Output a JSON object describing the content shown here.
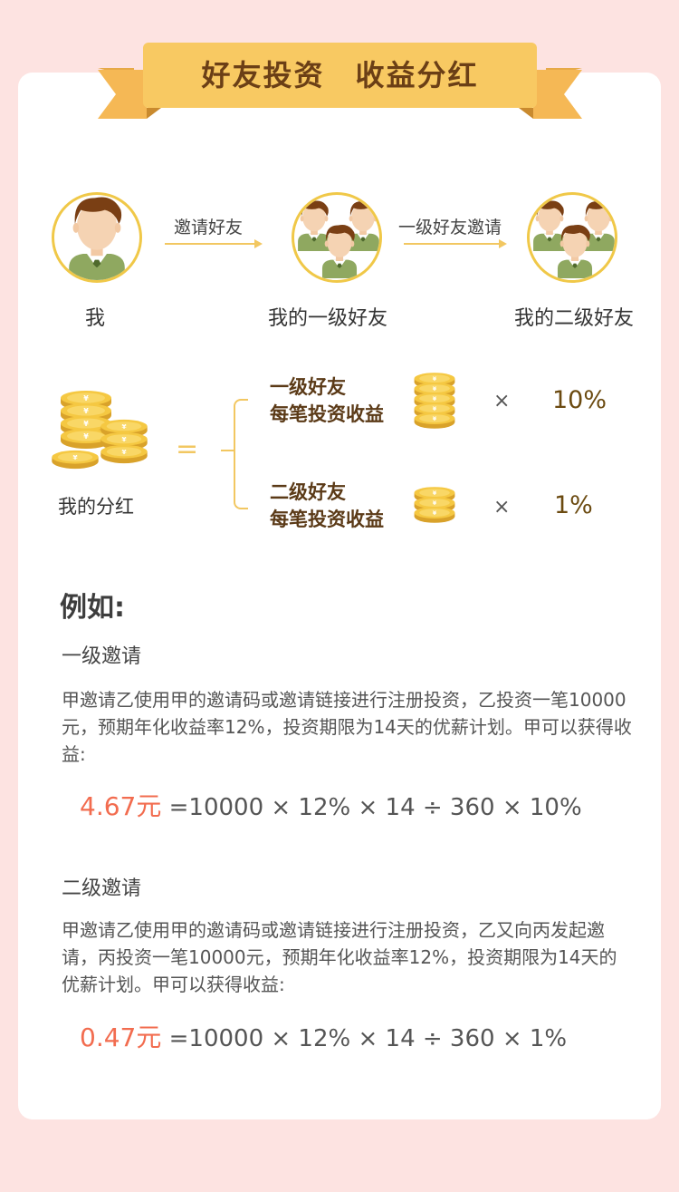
{
  "header": {
    "title": "好友投资　收益分红"
  },
  "diagram": {
    "me": {
      "label": "我"
    },
    "arrow1": {
      "label": "邀请好友"
    },
    "level1": {
      "label": "我的一级好友"
    },
    "arrow2": {
      "label": "一级好友邀请"
    },
    "level2": {
      "label": "我的二级好友"
    }
  },
  "rules": {
    "dividend_label": "我的分红",
    "equals": "=",
    "level1": {
      "line1": "一级好友",
      "line2": "每笔投资收益",
      "times": "×",
      "rate": "10%"
    },
    "level2": {
      "line1": "二级好友",
      "line2": "每笔投资收益",
      "times": "×",
      "rate": "1%"
    }
  },
  "example": {
    "title": "例如:",
    "level1": {
      "title": "一级邀请",
      "text": "甲邀请乙使用甲的邀请码或邀请链接进行注册投资，乙投资一笔10000元，预期年化收益率12%，投资期限为14天的优薪计划。甲可以获得收益:",
      "result": "4.67元",
      "formula": " =10000 × 12% × 14 ÷ 360 × 10%"
    },
    "level2": {
      "title": "二级邀请",
      "text": "甲邀请乙使用甲的邀请码或邀请链接进行注册投资，乙又向丙发起邀请，丙投资一笔10000元，预期年化收益率12%，投资期限为14天的优薪计划。甲可以获得收益:",
      "result": "0.47元",
      "formula": " =10000 × 12% × 14 ÷ 360 × 1%"
    }
  },
  "colors": {
    "background": "#fde3e1",
    "ribbon": "#f7c561",
    "accent_red": "#f26c4f",
    "gold": "#f2c761"
  },
  "icons": [
    "person-icon",
    "coin-stack-icon",
    "arrow-right-icon"
  ]
}
